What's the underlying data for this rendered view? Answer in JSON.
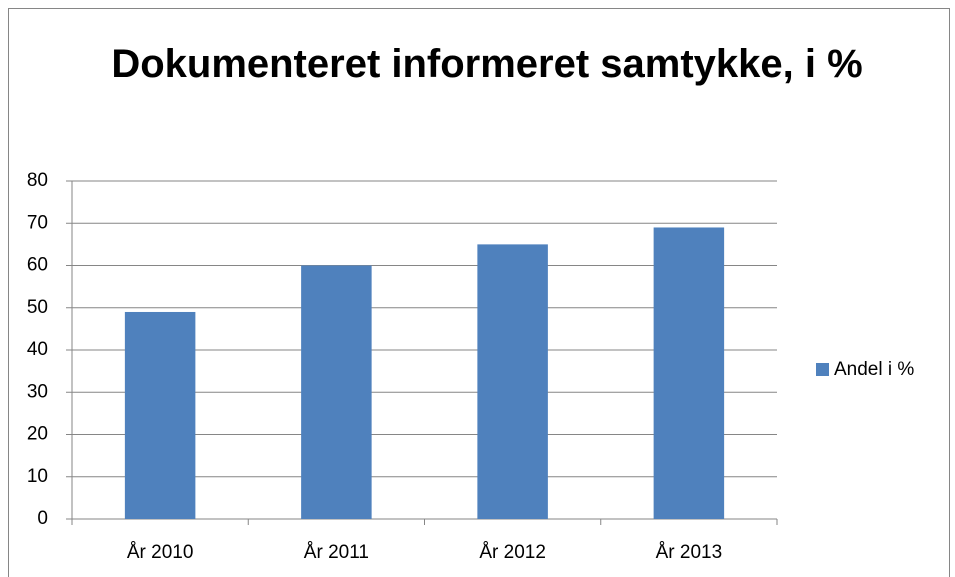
{
  "chart_data": {
    "type": "bar",
    "title": "Dokumenteret informeret samtykke, i %",
    "categories": [
      "År 2010",
      "År 2011",
      "År 2012",
      "År 2013"
    ],
    "series": [
      {
        "name": "Andel i %",
        "color": "#4f81bd",
        "values": [
          49,
          60,
          65,
          69
        ]
      }
    ],
    "ylim": [
      0,
      80
    ],
    "yticks": [
      0,
      10,
      20,
      30,
      40,
      50,
      60,
      70,
      80
    ],
    "grid": true,
    "legend": "right"
  }
}
